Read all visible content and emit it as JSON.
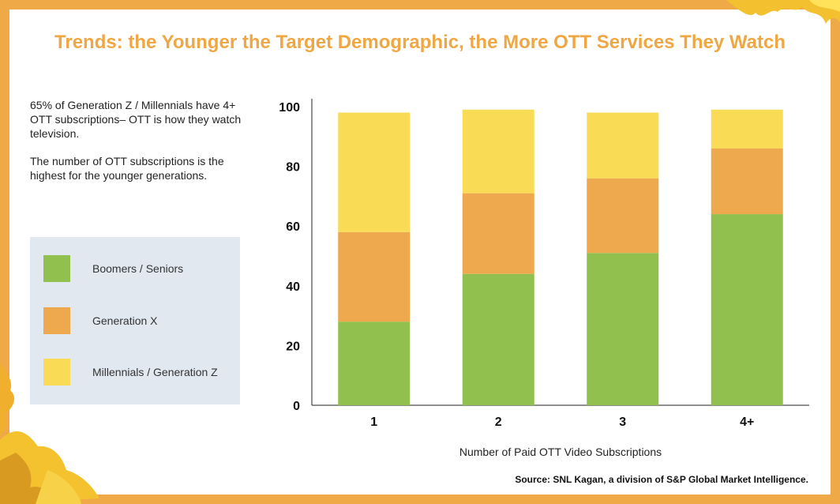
{
  "title": "Trends: the Younger the Target Demographic, the More OTT Services They Watch",
  "intro": {
    "paragraph1": "65% of Generation Z / Millennials have 4+ OTT subscriptions– OTT is how they watch television.",
    "paragraph2": "The number of OTT subscriptions is the highest for the younger generations."
  },
  "legend": [
    {
      "label": "Boomers / Seniors",
      "color": "#92C04E"
    },
    {
      "label": "Generation X",
      "color": "#EEA84D"
    },
    {
      "label": "Millennials / Generation Z",
      "color": "#F9DB55"
    }
  ],
  "source": "Source: SNL Kagan, a division of S&P Global Market Intelligence.",
  "chart_data": {
    "type": "bar",
    "stacked": true,
    "categories": [
      "1",
      "2",
      "3",
      "4+"
    ],
    "series": [
      {
        "name": "Boomers / Seniors",
        "values": [
          28,
          44,
          51,
          64
        ],
        "color": "#92C04E"
      },
      {
        "name": "Generation X",
        "values": [
          30,
          27,
          25,
          22
        ],
        "color": "#EEA84D"
      },
      {
        "name": "Millennials / Generation Z",
        "values": [
          40,
          28,
          22,
          13
        ],
        "color": "#F9DB55"
      }
    ],
    "title": "",
    "xlabel": "Number of Paid OTT Video Subscriptions",
    "ylabel": "",
    "ylim": [
      0,
      100
    ],
    "yticks": [
      0,
      20,
      40,
      60,
      80,
      100
    ],
    "grid": false
  }
}
